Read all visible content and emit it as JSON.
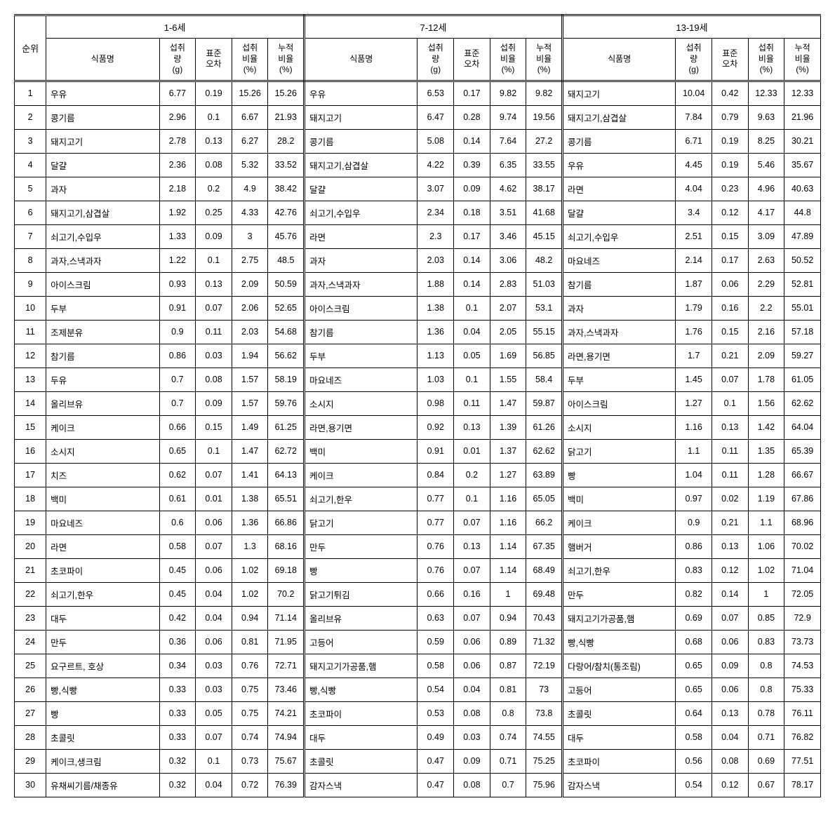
{
  "headers": {
    "rank": "순위",
    "ageGroups": [
      "1-6세",
      "7-12세",
      "13-19세"
    ],
    "cols": {
      "name": "식품명",
      "intake": "섭취\n량\n(g)",
      "stderr": "표준\n오차",
      "ratio": "섭취\n비율\n(%)",
      "cumratio": "누적\n비율\n(%)"
    }
  },
  "rows": [
    {
      "rank": 1,
      "g1": {
        "name": "우유",
        "intake": "6.77",
        "se": "0.19",
        "r": "15.26",
        "cr": "15.26"
      },
      "g2": {
        "name": "우유",
        "intake": "6.53",
        "se": "0.17",
        "r": "9.82",
        "cr": "9.82"
      },
      "g3": {
        "name": "돼지고기",
        "intake": "10.04",
        "se": "0.42",
        "r": "12.33",
        "cr": "12.33"
      }
    },
    {
      "rank": 2,
      "g1": {
        "name": "콩기름",
        "intake": "2.96",
        "se": "0.1",
        "r": "6.67",
        "cr": "21.93"
      },
      "g2": {
        "name": "돼지고기",
        "intake": "6.47",
        "se": "0.28",
        "r": "9.74",
        "cr": "19.56"
      },
      "g3": {
        "name": "돼지고기,삼겹살",
        "intake": "7.84",
        "se": "0.79",
        "r": "9.63",
        "cr": "21.96"
      }
    },
    {
      "rank": 3,
      "g1": {
        "name": "돼지고기",
        "intake": "2.78",
        "se": "0.13",
        "r": "6.27",
        "cr": "28.2"
      },
      "g2": {
        "name": "콩기름",
        "intake": "5.08",
        "se": "0.14",
        "r": "7.64",
        "cr": "27.2"
      },
      "g3": {
        "name": "콩기름",
        "intake": "6.71",
        "se": "0.19",
        "r": "8.25",
        "cr": "30.21"
      }
    },
    {
      "rank": 4,
      "g1": {
        "name": "달걀",
        "intake": "2.36",
        "se": "0.08",
        "r": "5.32",
        "cr": "33.52"
      },
      "g2": {
        "name": "돼지고기,삼겹살",
        "intake": "4.22",
        "se": "0.39",
        "r": "6.35",
        "cr": "33.55"
      },
      "g3": {
        "name": "우유",
        "intake": "4.45",
        "se": "0.19",
        "r": "5.46",
        "cr": "35.67"
      }
    },
    {
      "rank": 5,
      "g1": {
        "name": "과자",
        "intake": "2.18",
        "se": "0.2",
        "r": "4.9",
        "cr": "38.42"
      },
      "g2": {
        "name": "달걀",
        "intake": "3.07",
        "se": "0.09",
        "r": "4.62",
        "cr": "38.17"
      },
      "g3": {
        "name": "라면",
        "intake": "4.04",
        "se": "0.23",
        "r": "4.96",
        "cr": "40.63"
      }
    },
    {
      "rank": 6,
      "g1": {
        "name": "돼지고기,삼겹살",
        "intake": "1.92",
        "se": "0.25",
        "r": "4.33",
        "cr": "42.76"
      },
      "g2": {
        "name": "쇠고기,수입우",
        "intake": "2.34",
        "se": "0.18",
        "r": "3.51",
        "cr": "41.68"
      },
      "g3": {
        "name": "달걀",
        "intake": "3.4",
        "se": "0.12",
        "r": "4.17",
        "cr": "44.8"
      }
    },
    {
      "rank": 7,
      "g1": {
        "name": "쇠고기,수입우",
        "intake": "1.33",
        "se": "0.09",
        "r": "3",
        "cr": "45.76"
      },
      "g2": {
        "name": "라면",
        "intake": "2.3",
        "se": "0.17",
        "r": "3.46",
        "cr": "45.15"
      },
      "g3": {
        "name": "쇠고기,수입우",
        "intake": "2.51",
        "se": "0.15",
        "r": "3.09",
        "cr": "47.89"
      }
    },
    {
      "rank": 8,
      "g1": {
        "name": "과자,스낵과자",
        "intake": "1.22",
        "se": "0.1",
        "r": "2.75",
        "cr": "48.5"
      },
      "g2": {
        "name": "과자",
        "intake": "2.03",
        "se": "0.14",
        "r": "3.06",
        "cr": "48.2"
      },
      "g3": {
        "name": "마요네즈",
        "intake": "2.14",
        "se": "0.17",
        "r": "2.63",
        "cr": "50.52"
      }
    },
    {
      "rank": 9,
      "g1": {
        "name": "아이스크림",
        "intake": "0.93",
        "se": "0.13",
        "r": "2.09",
        "cr": "50.59"
      },
      "g2": {
        "name": "과자,스낵과자",
        "intake": "1.88",
        "se": "0.14",
        "r": "2.83",
        "cr": "51.03"
      },
      "g3": {
        "name": "참기름",
        "intake": "1.87",
        "se": "0.06",
        "r": "2.29",
        "cr": "52.81"
      }
    },
    {
      "rank": 10,
      "g1": {
        "name": "두부",
        "intake": "0.91",
        "se": "0.07",
        "r": "2.06",
        "cr": "52.65"
      },
      "g2": {
        "name": "아이스크림",
        "intake": "1.38",
        "se": "0.1",
        "r": "2.07",
        "cr": "53.1"
      },
      "g3": {
        "name": "과자",
        "intake": "1.79",
        "se": "0.16",
        "r": "2.2",
        "cr": "55.01"
      }
    },
    {
      "rank": 11,
      "g1": {
        "name": "조제분유",
        "intake": "0.9",
        "se": "0.11",
        "r": "2.03",
        "cr": "54.68"
      },
      "g2": {
        "name": "참기름",
        "intake": "1.36",
        "se": "0.04",
        "r": "2.05",
        "cr": "55.15"
      },
      "g3": {
        "name": "과자,스낵과자",
        "intake": "1.76",
        "se": "0.15",
        "r": "2.16",
        "cr": "57.18"
      }
    },
    {
      "rank": 12,
      "g1": {
        "name": "참기름",
        "intake": "0.86",
        "se": "0.03",
        "r": "1.94",
        "cr": "56.62"
      },
      "g2": {
        "name": "두부",
        "intake": "1.13",
        "se": "0.05",
        "r": "1.69",
        "cr": "56.85"
      },
      "g3": {
        "name": "라면,용기면",
        "intake": "1.7",
        "se": "0.21",
        "r": "2.09",
        "cr": "59.27"
      }
    },
    {
      "rank": 13,
      "g1": {
        "name": "두유",
        "intake": "0.7",
        "se": "0.08",
        "r": "1.57",
        "cr": "58.19"
      },
      "g2": {
        "name": "마요네즈",
        "intake": "1.03",
        "se": "0.1",
        "r": "1.55",
        "cr": "58.4"
      },
      "g3": {
        "name": "두부",
        "intake": "1.45",
        "se": "0.07",
        "r": "1.78",
        "cr": "61.05"
      }
    },
    {
      "rank": 14,
      "g1": {
        "name": "올리브유",
        "intake": "0.7",
        "se": "0.09",
        "r": "1.57",
        "cr": "59.76"
      },
      "g2": {
        "name": "소시지",
        "intake": "0.98",
        "se": "0.11",
        "r": "1.47",
        "cr": "59.87"
      },
      "g3": {
        "name": "아이스크림",
        "intake": "1.27",
        "se": "0.1",
        "r": "1.56",
        "cr": "62.62"
      }
    },
    {
      "rank": 15,
      "g1": {
        "name": "케이크",
        "intake": "0.66",
        "se": "0.15",
        "r": "1.49",
        "cr": "61.25"
      },
      "g2": {
        "name": "라면,용기면",
        "intake": "0.92",
        "se": "0.13",
        "r": "1.39",
        "cr": "61.26"
      },
      "g3": {
        "name": "소시지",
        "intake": "1.16",
        "se": "0.13",
        "r": "1.42",
        "cr": "64.04"
      }
    },
    {
      "rank": 16,
      "g1": {
        "name": "소시지",
        "intake": "0.65",
        "se": "0.1",
        "r": "1.47",
        "cr": "62.72"
      },
      "g2": {
        "name": "백미",
        "intake": "0.91",
        "se": "0.01",
        "r": "1.37",
        "cr": "62.62"
      },
      "g3": {
        "name": "닭고기",
        "intake": "1.1",
        "se": "0.11",
        "r": "1.35",
        "cr": "65.39"
      }
    },
    {
      "rank": 17,
      "g1": {
        "name": "치즈",
        "intake": "0.62",
        "se": "0.07",
        "r": "1.41",
        "cr": "64.13"
      },
      "g2": {
        "name": "케이크",
        "intake": "0.84",
        "se": "0.2",
        "r": "1.27",
        "cr": "63.89"
      },
      "g3": {
        "name": "빵",
        "intake": "1.04",
        "se": "0.11",
        "r": "1.28",
        "cr": "66.67"
      }
    },
    {
      "rank": 18,
      "g1": {
        "name": "백미",
        "intake": "0.61",
        "se": "0.01",
        "r": "1.38",
        "cr": "65.51"
      },
      "g2": {
        "name": "쇠고기,한우",
        "intake": "0.77",
        "se": "0.1",
        "r": "1.16",
        "cr": "65.05"
      },
      "g3": {
        "name": "백미",
        "intake": "0.97",
        "se": "0.02",
        "r": "1.19",
        "cr": "67.86"
      }
    },
    {
      "rank": 19,
      "g1": {
        "name": "마요네즈",
        "intake": "0.6",
        "se": "0.06",
        "r": "1.36",
        "cr": "66.86"
      },
      "g2": {
        "name": "닭고기",
        "intake": "0.77",
        "se": "0.07",
        "r": "1.16",
        "cr": "66.2"
      },
      "g3": {
        "name": "케이크",
        "intake": "0.9",
        "se": "0.21",
        "r": "1.1",
        "cr": "68.96"
      }
    },
    {
      "rank": 20,
      "g1": {
        "name": "라면",
        "intake": "0.58",
        "se": "0.07",
        "r": "1.3",
        "cr": "68.16"
      },
      "g2": {
        "name": "만두",
        "intake": "0.76",
        "se": "0.13",
        "r": "1.14",
        "cr": "67.35"
      },
      "g3": {
        "name": "햄버거",
        "intake": "0.86",
        "se": "0.13",
        "r": "1.06",
        "cr": "70.02"
      }
    },
    {
      "rank": 21,
      "g1": {
        "name": "초코파이",
        "intake": "0.45",
        "se": "0.06",
        "r": "1.02",
        "cr": "69.18"
      },
      "g2": {
        "name": "빵",
        "intake": "0.76",
        "se": "0.07",
        "r": "1.14",
        "cr": "68.49"
      },
      "g3": {
        "name": "쇠고기,한우",
        "intake": "0.83",
        "se": "0.12",
        "r": "1.02",
        "cr": "71.04"
      }
    },
    {
      "rank": 22,
      "g1": {
        "name": "쇠고기,한우",
        "intake": "0.45",
        "se": "0.04",
        "r": "1.02",
        "cr": "70.2"
      },
      "g2": {
        "name": "닭고기튀김",
        "intake": "0.66",
        "se": "0.16",
        "r": "1",
        "cr": "69.48"
      },
      "g3": {
        "name": "만두",
        "intake": "0.82",
        "se": "0.14",
        "r": "1",
        "cr": "72.05"
      }
    },
    {
      "rank": 23,
      "g1": {
        "name": "대두",
        "intake": "0.42",
        "se": "0.04",
        "r": "0.94",
        "cr": "71.14"
      },
      "g2": {
        "name": "올리브유",
        "intake": "0.63",
        "se": "0.07",
        "r": "0.94",
        "cr": "70.43"
      },
      "g3": {
        "name": "돼지고기가공품,햄",
        "intake": "0.69",
        "se": "0.07",
        "r": "0.85",
        "cr": "72.9"
      }
    },
    {
      "rank": 24,
      "g1": {
        "name": "만두",
        "intake": "0.36",
        "se": "0.06",
        "r": "0.81",
        "cr": "71.95"
      },
      "g2": {
        "name": "고등어",
        "intake": "0.59",
        "se": "0.06",
        "r": "0.89",
        "cr": "71.32"
      },
      "g3": {
        "name": "빵,식빵",
        "intake": "0.68",
        "se": "0.06",
        "r": "0.83",
        "cr": "73.73"
      }
    },
    {
      "rank": 25,
      "g1": {
        "name": "요구르트, 호상",
        "intake": "0.34",
        "se": "0.03",
        "r": "0.76",
        "cr": "72.71"
      },
      "g2": {
        "name": "돼지고기가공품,햄",
        "intake": "0.58",
        "se": "0.06",
        "r": "0.87",
        "cr": "72.19"
      },
      "g3": {
        "name": "다랑어/참치(통조림)",
        "intake": "0.65",
        "se": "0.09",
        "r": "0.8",
        "cr": "74.53"
      }
    },
    {
      "rank": 26,
      "g1": {
        "name": "빵,식빵",
        "intake": "0.33",
        "se": "0.03",
        "r": "0.75",
        "cr": "73.46"
      },
      "g2": {
        "name": "빵,식빵",
        "intake": "0.54",
        "se": "0.04",
        "r": "0.81",
        "cr": "73"
      },
      "g3": {
        "name": "고등어",
        "intake": "0.65",
        "se": "0.06",
        "r": "0.8",
        "cr": "75.33"
      }
    },
    {
      "rank": 27,
      "g1": {
        "name": "빵",
        "intake": "0.33",
        "se": "0.05",
        "r": "0.75",
        "cr": "74.21"
      },
      "g2": {
        "name": "초코파이",
        "intake": "0.53",
        "se": "0.08",
        "r": "0.8",
        "cr": "73.8"
      },
      "g3": {
        "name": "초콜릿",
        "intake": "0.64",
        "se": "0.13",
        "r": "0.78",
        "cr": "76.11"
      }
    },
    {
      "rank": 28,
      "g1": {
        "name": "초콜릿",
        "intake": "0.33",
        "se": "0.07",
        "r": "0.74",
        "cr": "74.94"
      },
      "g2": {
        "name": "대두",
        "intake": "0.49",
        "se": "0.03",
        "r": "0.74",
        "cr": "74.55"
      },
      "g3": {
        "name": "대두",
        "intake": "0.58",
        "se": "0.04",
        "r": "0.71",
        "cr": "76.82"
      }
    },
    {
      "rank": 29,
      "g1": {
        "name": "케이크,생크림",
        "intake": "0.32",
        "se": "0.1",
        "r": "0.73",
        "cr": "75.67"
      },
      "g2": {
        "name": "초콜릿",
        "intake": "0.47",
        "se": "0.09",
        "r": "0.71",
        "cr": "75.25"
      },
      "g3": {
        "name": "초코파이",
        "intake": "0.56",
        "se": "0.08",
        "r": "0.69",
        "cr": "77.51"
      }
    },
    {
      "rank": 30,
      "g1": {
        "name": "유채씨기름/채종유",
        "intake": "0.32",
        "se": "0.04",
        "r": "0.72",
        "cr": "76.39"
      },
      "g2": {
        "name": "감자스낵",
        "intake": "0.47",
        "se": "0.08",
        "r": "0.7",
        "cr": "75.96"
      },
      "g3": {
        "name": "감자스낵",
        "intake": "0.54",
        "se": "0.12",
        "r": "0.67",
        "cr": "78.17"
      }
    }
  ]
}
